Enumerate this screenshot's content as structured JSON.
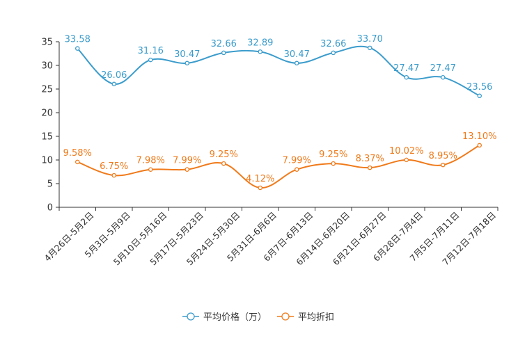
{
  "chart_data": {
    "type": "line",
    "title": "",
    "xlabel": "",
    "ylabel": "",
    "ylim": [
      0,
      35
    ],
    "yticks": [
      "0",
      "5",
      "10",
      "15",
      "20",
      "25",
      "30",
      "35"
    ],
    "legend_position": "bottom-center",
    "categories": [
      "4月26日-5月2日",
      "5月3日-5月9日",
      "5月10日-5月16日",
      "5月17日-5月23日",
      "5月24日-5月30日",
      "5月31日-6月6日",
      "6月7日-6月13日",
      "6月14日-6月20日",
      "6月21日-6月27日",
      "6月28日-7月4日",
      "7月5日-7月11日",
      "7月12日-7月18日"
    ],
    "series": [
      {
        "name": "平均价格（万）",
        "color": "#3b9ccc",
        "values": [
          33.58,
          26.06,
          31.16,
          30.47,
          32.66,
          32.89,
          30.47,
          32.66,
          33.7,
          27.47,
          27.47,
          23.56
        ],
        "labels": [
          "33.58",
          "26.06",
          "31.16",
          "30.47",
          "32.66",
          "32.89",
          "30.47",
          "32.66",
          "33.70",
          "27.47",
          "27.47",
          "23.56"
        ]
      },
      {
        "name": "平均折扣",
        "color": "#f07a1a",
        "values": [
          9.58,
          6.75,
          7.98,
          7.99,
          9.25,
          4.12,
          7.99,
          9.25,
          8.37,
          10.02,
          8.95,
          13.1
        ],
        "labels": [
          "9.58%",
          "6.75%",
          "7.98%",
          "7.99%",
          "9.25%",
          "4.12%",
          "7.99%",
          "9.25%",
          "8.37%",
          "10.02%",
          "8.95%",
          "13.10%"
        ]
      }
    ]
  }
}
